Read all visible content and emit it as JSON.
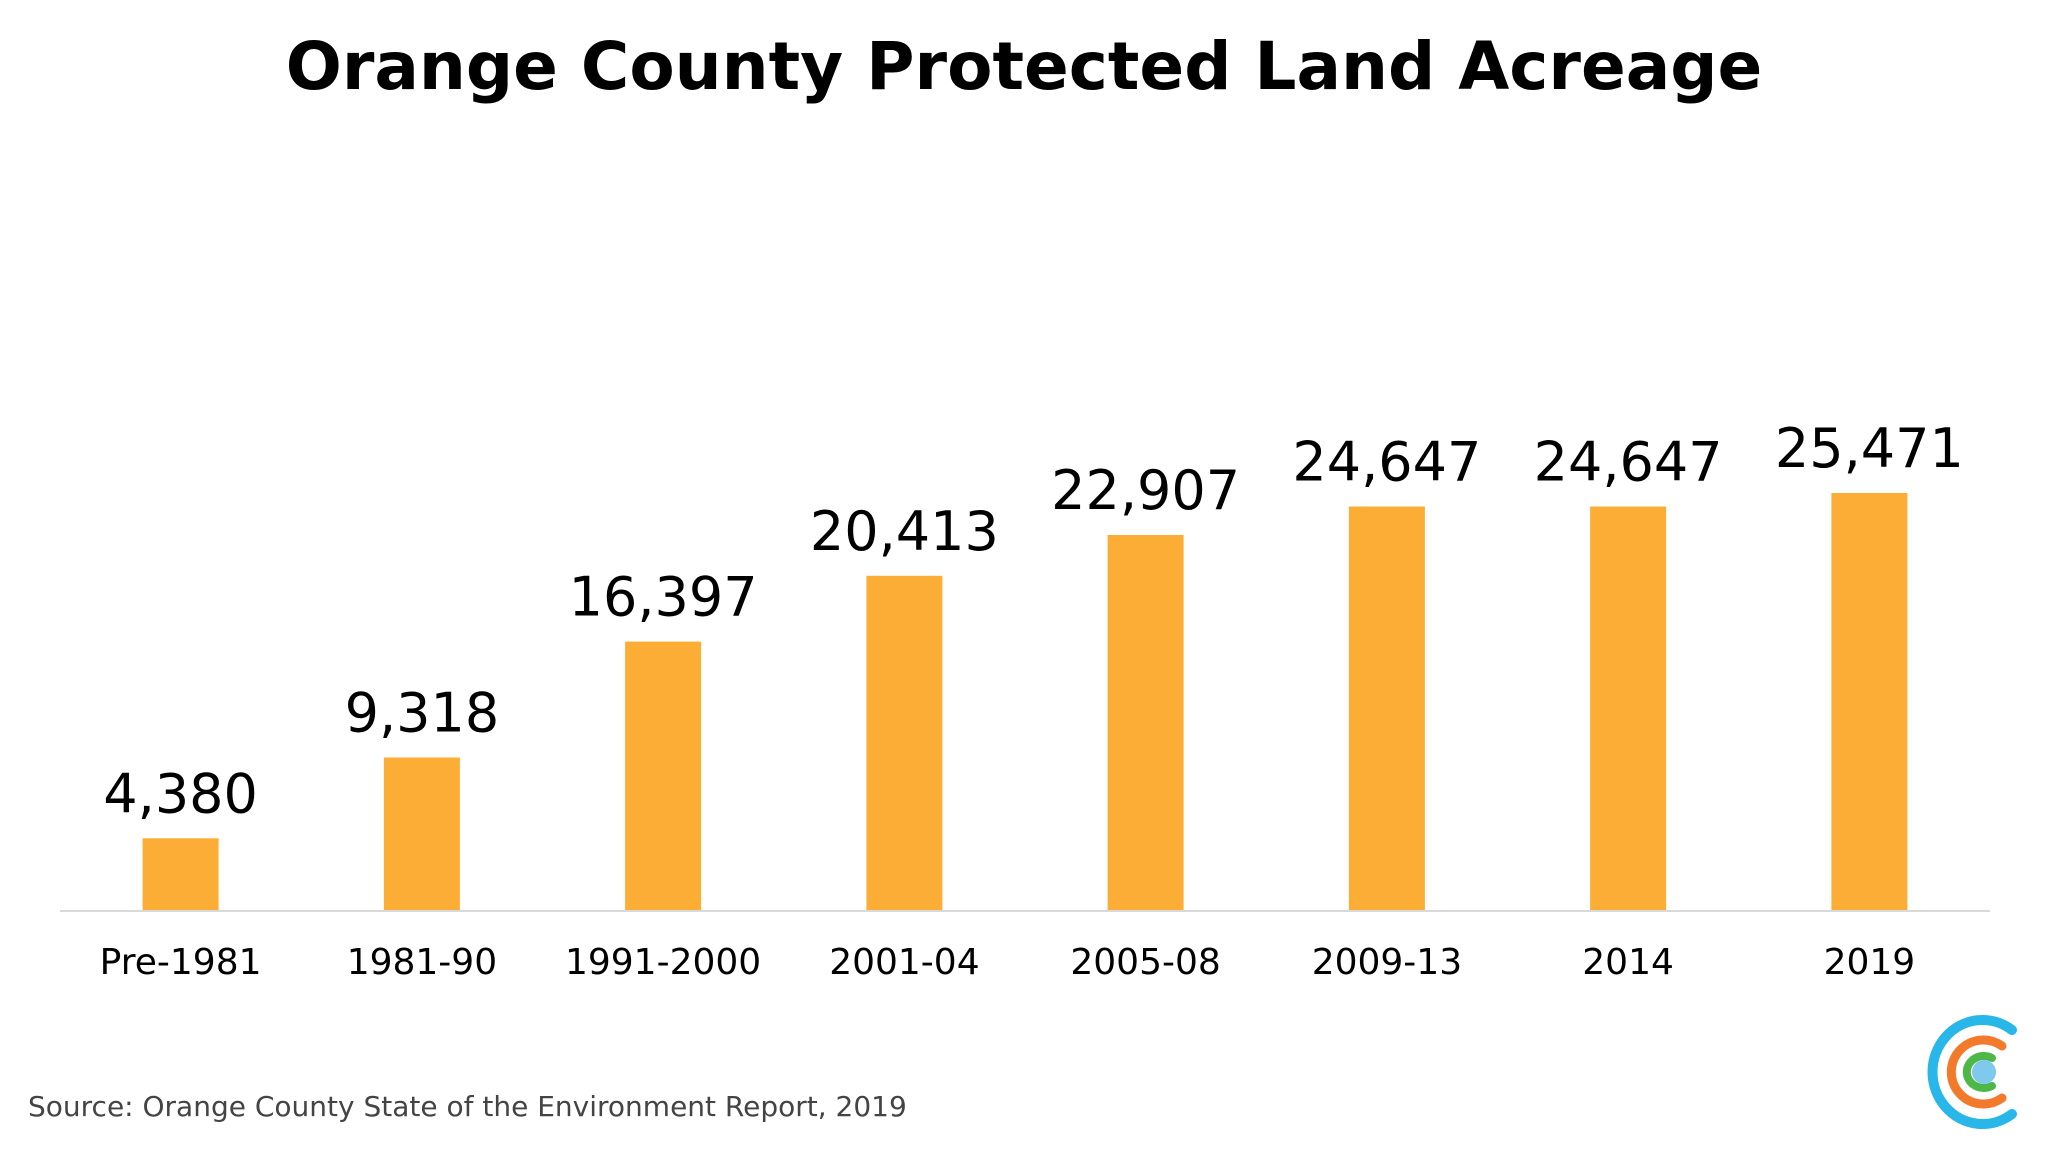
{
  "colors": {
    "bar": "#FBAD35",
    "axis": "#D9D9D9",
    "text": "#000000",
    "source_text": "#444444",
    "logo_blue": "#29B6E8",
    "logo_orange": "#F37A2A",
    "logo_green": "#4DB848",
    "logo_dot": "#7FC8EE"
  },
  "icons": {
    "logo": "concentric-c-logo-icon"
  },
  "source": "Source: Orange County State of the Environment Report, 2019",
  "chart_data": {
    "type": "bar",
    "title": "Orange County Protected Land Acreage",
    "xlabel": "",
    "ylabel": "",
    "categories": [
      "Pre-1981",
      "1981-90",
      "1991-2000",
      "2001-04",
      "2005-08",
      "2009-13",
      "2014",
      "2019"
    ],
    "values": [
      4380,
      9318,
      16397,
      20413,
      22907,
      24647,
      24647,
      25471
    ],
    "data_labels": [
      "4,380",
      "9,318",
      "16,397",
      "20,413",
      "22,907",
      "24,647",
      "24,647",
      "25,471"
    ],
    "ylim": [
      0,
      29000
    ],
    "grid": false,
    "legend": "none"
  }
}
